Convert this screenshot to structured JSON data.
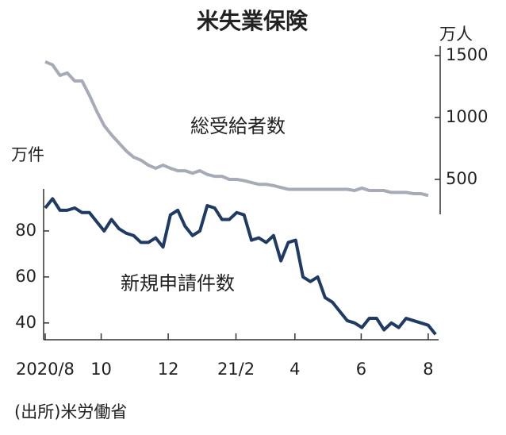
{
  "chart_data": {
    "type": "line",
    "title": "米失業保険",
    "y_unit": "万件",
    "y2_unit": "万人",
    "source": "(出所)米労働省",
    "x": [
      0,
      1,
      2,
      3,
      4,
      5,
      6,
      7,
      8,
      9,
      10,
      11,
      12,
      13,
      14,
      15,
      16,
      17,
      18,
      19,
      20,
      21,
      22,
      23,
      24,
      25,
      26,
      27,
      28,
      29,
      30,
      31,
      32,
      33,
      34,
      35,
      36,
      37,
      38,
      39,
      40,
      41,
      42,
      43,
      44,
      45,
      46,
      47,
      48,
      49,
      50,
      51,
      52,
      53
    ],
    "xlim": [
      -0.3,
      53.3
    ],
    "xticks": [
      {
        "value": 0,
        "label": "2020/8"
      },
      {
        "value": 7.6,
        "label": "10"
      },
      {
        "value": 16.7,
        "label": "12"
      },
      {
        "value": 25.9,
        "label": "21/2"
      },
      {
        "value": 33.9,
        "label": "4"
      },
      {
        "value": 42.9,
        "label": "6"
      },
      {
        "value": 52,
        "label": "8"
      }
    ],
    "ylim": [
      32,
      97
    ],
    "yticks": [
      40,
      60,
      80
    ],
    "y2lim": [
      250,
      1600
    ],
    "y2ticks": [
      500,
      1000,
      1500
    ],
    "series": [
      {
        "name": "新規申請件数",
        "color": "#1f3a63",
        "values": [
          90,
          94,
          89,
          89,
          90,
          88,
          88,
          84,
          80,
          85,
          81,
          79,
          78,
          75,
          75,
          77,
          73,
          87,
          89,
          82,
          78,
          80,
          91,
          90,
          85,
          85,
          88,
          87,
          76,
          77,
          75,
          78,
          67,
          75,
          76,
          60,
          58,
          60,
          51,
          49,
          45,
          41,
          40,
          38,
          42,
          42,
          37,
          40,
          38,
          42,
          41,
          40,
          39,
          35
        ]
      },
      {
        "name": "総受給者数",
        "color": "#a7aab7",
        "axis": "y2",
        "values": [
          1450,
          1425,
          1340,
          1360,
          1295,
          1295,
          1180,
          1050,
          935,
          860,
          795,
          730,
          680,
          655,
          615,
          590,
          615,
          590,
          570,
          570,
          550,
          570,
          540,
          525,
          525,
          500,
          500,
          490,
          475,
          460,
          460,
          450,
          435,
          420,
          420,
          420,
          420,
          420,
          420,
          420,
          420,
          420,
          410,
          430,
          410,
          410,
          410,
          395,
          395,
          395,
          385,
          385,
          370,
          null
        ]
      }
    ]
  }
}
